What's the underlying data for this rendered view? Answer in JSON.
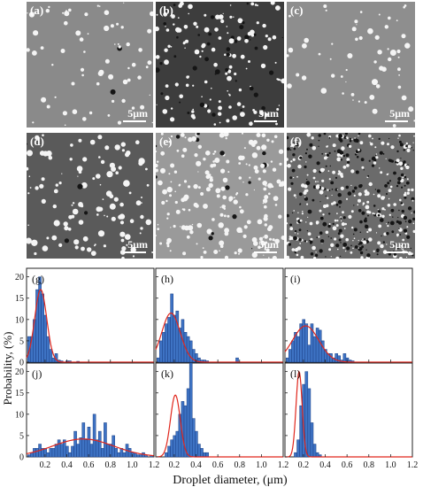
{
  "figure": {
    "sem_panels": [
      {
        "id": "a",
        "label": "(a)",
        "scale": "5μm"
      },
      {
        "id": "b",
        "label": "(b)",
        "scale": "5μm"
      },
      {
        "id": "c",
        "label": "(c)",
        "scale": "5μm"
      },
      {
        "id": "d",
        "label": "(d)",
        "scale": "5μm"
      },
      {
        "id": "e",
        "label": "(e)",
        "scale": "5μm"
      },
      {
        "id": "f",
        "label": "(f)",
        "scale": "5μm"
      }
    ],
    "colors": {
      "bar_fill": "#3e73c4",
      "bar_edge": "#1a3f85",
      "fit_line": "#e0261c"
    }
  },
  "chart_data": {
    "type": "bar",
    "ylabel": "Probability, (%)",
    "xlabel": "Droplet diameter, (μm)",
    "ylim": [
      0,
      22
    ],
    "yticks": [
      0,
      5,
      10,
      15,
      20
    ],
    "xlim": [
      0.03,
      1.2
    ],
    "xticks": [
      "0.2",
      "0.4",
      "0.6",
      "0.8",
      "1.0",
      "1.2"
    ],
    "xtick_values": [
      0.2,
      0.4,
      0.6,
      0.8,
      1.0,
      1.2
    ],
    "bin_width": 0.025,
    "bin_start": 0.04,
    "panels": [
      {
        "label": "(g)",
        "fit": {
          "mu": 0.16,
          "sigma": 0.055,
          "amp": 17
        },
        "values": [
          6,
          6,
          10,
          17,
          20,
          16,
          11,
          6,
          3,
          1,
          2,
          0.5,
          0.3,
          0,
          0.3,
          0.3,
          0,
          0,
          0.2,
          0,
          0,
          0,
          0,
          0,
          0,
          0,
          0,
          0,
          0,
          0,
          0,
          0,
          0,
          0,
          0,
          0,
          0,
          0,
          0,
          0,
          0,
          0,
          0,
          0,
          0,
          0,
          0
        ]
      },
      {
        "label": "(h)",
        "fit": {
          "mu": 0.17,
          "sigma": 0.085,
          "amp": 11.5
        },
        "values": [
          1,
          5,
          7,
          9,
          10.5,
          16,
          11,
          12,
          8,
          10,
          7,
          6,
          5,
          3,
          2,
          1,
          0.5,
          0.5,
          0.3,
          0,
          0,
          0,
          0,
          0,
          0,
          0,
          0,
          0,
          0,
          1,
          0,
          0,
          0,
          0,
          0,
          0,
          0,
          0,
          0,
          0,
          0,
          0,
          0,
          0,
          0,
          0,
          0
        ]
      },
      {
        "label": "(i)",
        "fit": {
          "mu": 0.22,
          "sigma": 0.12,
          "amp": 8.5
        },
        "values": [
          1,
          3,
          5,
          7,
          6,
          9,
          10,
          9,
          4,
          9,
          6,
          8,
          7.5,
          5,
          3,
          2,
          2,
          1,
          2,
          1.5,
          0.5,
          2,
          1,
          0.5,
          0.3,
          0,
          0,
          0,
          0,
          0,
          0,
          0,
          0,
          0,
          0,
          0,
          0,
          0,
          0,
          0,
          0,
          0,
          0,
          0,
          0,
          0,
          0
        ]
      },
      {
        "label": "(j)",
        "fit": {
          "mu": 0.55,
          "sigma": 0.28,
          "amp": 4.2
        },
        "values": [
          0.5,
          1,
          2,
          2,
          3,
          2,
          2,
          1,
          2,
          2,
          3,
          4,
          3,
          4,
          2.5,
          1,
          2.5,
          6,
          3,
          4.5,
          8,
          4,
          7,
          3,
          10,
          4,
          6,
          2,
          8,
          3,
          3,
          5,
          2,
          1,
          2,
          1,
          3,
          2,
          1,
          1,
          0.5,
          0.5,
          1,
          0.3,
          0,
          0.3,
          0
        ]
      },
      {
        "label": "(k)",
        "fit": {
          "mu": 0.21,
          "sigma": 0.045,
          "amp": 14.5
        },
        "values": [
          0,
          0,
          0,
          1,
          2.5,
          4,
          5,
          6,
          10,
          13,
          12,
          16,
          22,
          9,
          6,
          3,
          2,
          1,
          1,
          0,
          0,
          0,
          0,
          0,
          0,
          0,
          0,
          0,
          0,
          0,
          0,
          0,
          0,
          0,
          0,
          0,
          0,
          0,
          0,
          0,
          0,
          0,
          0,
          0,
          0,
          0,
          0
        ]
      },
      {
        "label": "(l)",
        "fit": {
          "mu": 0.16,
          "sigma": 0.028,
          "amp": 20
        },
        "values": [
          0,
          0,
          0,
          1,
          4,
          12,
          17,
          20,
          16,
          8,
          3,
          1,
          0.5,
          0,
          0,
          0,
          0,
          0,
          0,
          0,
          0,
          0,
          0,
          0,
          0,
          0,
          0,
          0,
          0,
          0,
          0,
          0,
          0,
          0,
          0,
          0,
          0,
          0,
          0,
          0,
          0,
          0,
          0,
          0,
          0,
          0,
          0
        ]
      }
    ]
  }
}
